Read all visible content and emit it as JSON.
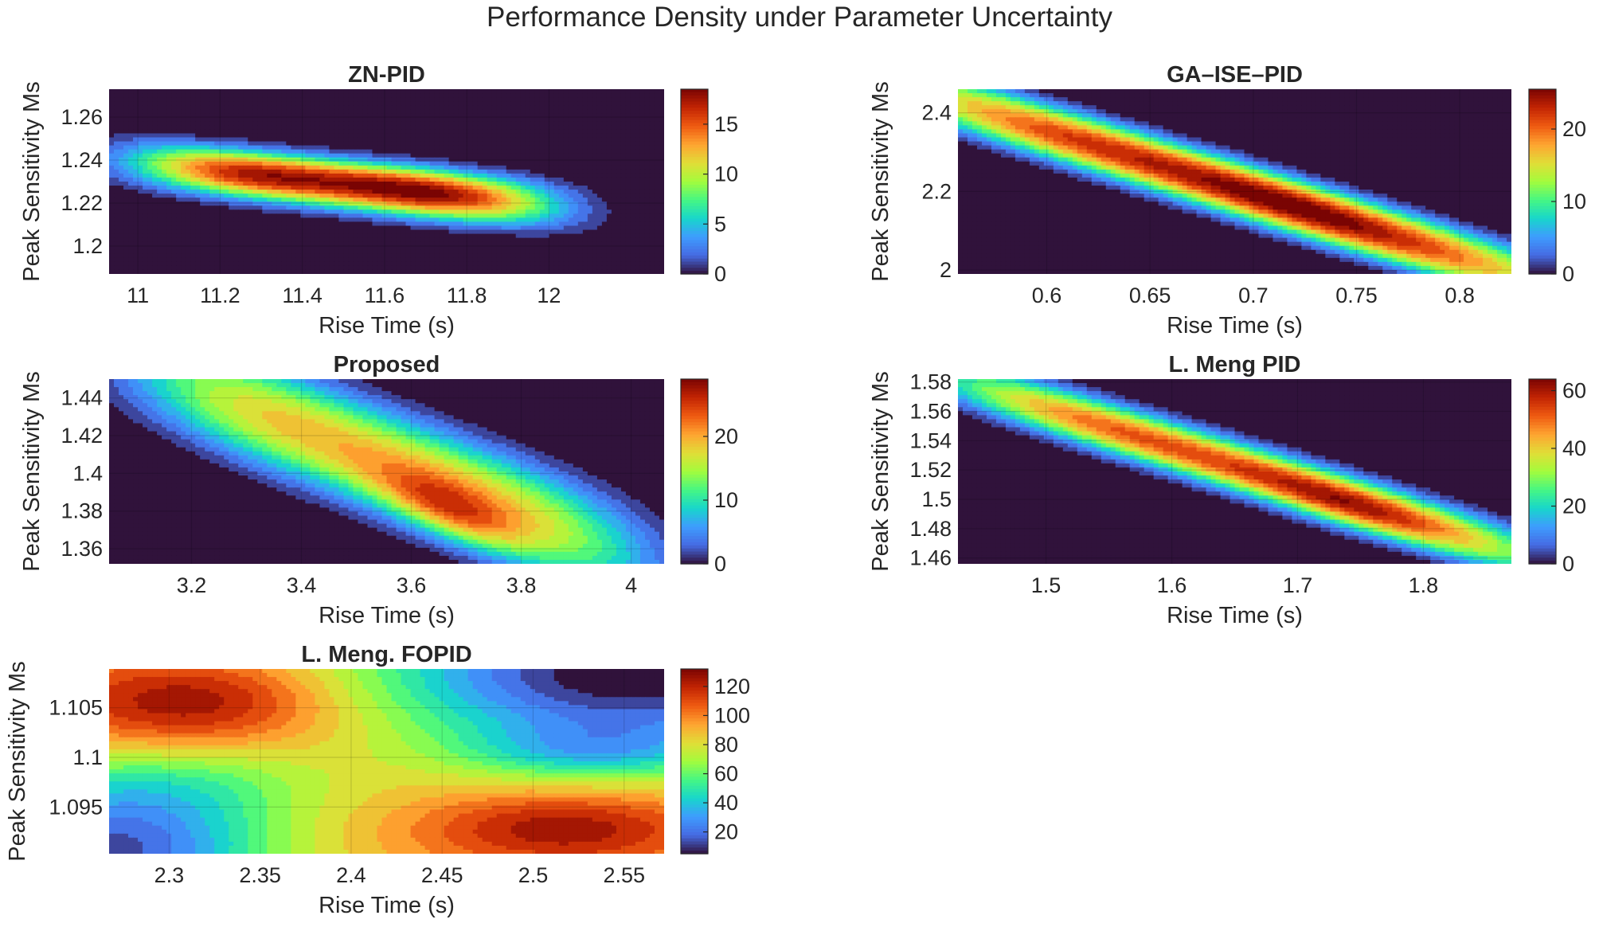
{
  "figure_title": "Performance Density under Parameter Uncertainty",
  "colors": {
    "background": "#ffffff",
    "text": "#262626",
    "low_density": "#2b1640",
    "high_density": "#7b0403",
    "grid": "#000000"
  },
  "colormap": "turbo",
  "chart_data": [
    {
      "type": "heatmap",
      "title": "ZN-PID",
      "xlabel": "Rise Time (s)",
      "ylabel": "Peak Sensitivity Ms",
      "xlim": [
        10.93,
        12.28
      ],
      "ylim": [
        1.187,
        1.273
      ],
      "xticks": [
        "11",
        "11.2",
        "11.4",
        "11.6",
        "11.8",
        "12"
      ],
      "yticks": [
        "1.2",
        "1.22",
        "1.24",
        "1.26"
      ],
      "colorbar": {
        "range": [
          0,
          18.5
        ],
        "ticks": [
          "0",
          "5",
          "10",
          "15"
        ]
      },
      "ridge": [
        [
          11.0,
          1.238
        ],
        [
          12.2,
          1.214
        ]
      ],
      "ridge_width": 0.009,
      "blobs": [
        {
          "x": 11.5,
          "y": 1.229,
          "sx": 0.42,
          "sy": 0.008,
          "w": 16.5,
          "shape": "flat"
        },
        {
          "x": 11.7,
          "y": 1.225,
          "sx": 0.16,
          "sy": 0.01,
          "w": 2.2
        },
        {
          "x": 11.28,
          "y": 1.231,
          "sx": 0.12,
          "sy": 0.007,
          "w": 1.3
        }
      ]
    },
    {
      "type": "heatmap",
      "title": "GA–ISE–PID",
      "xlabel": "Rise Time (s)",
      "ylabel": "Peak Sensitivity Ms",
      "xlim": [
        0.557,
        0.825
      ],
      "ylim": [
        1.99,
        2.46
      ],
      "xticks": [
        "0.6",
        "0.65",
        "0.7",
        "0.75",
        "0.8"
      ],
      "yticks": [
        "2",
        "2.2",
        "2.4"
      ],
      "colorbar": {
        "range": [
          0,
          25.5
        ],
        "ticks": [
          "0",
          "10",
          "20"
        ]
      },
      "ridge": [
        [
          0.57,
          2.4
        ],
        [
          0.82,
          2.0
        ]
      ],
      "ridge_width": 0.04,
      "blobs": [
        {
          "x": 0.69,
          "y": 2.21,
          "sx": 0.14,
          "sy": 0.05,
          "w": 22.5,
          "shape": "flat"
        },
        {
          "x": 0.718,
          "y": 2.164,
          "sx": 0.035,
          "sy": 0.05,
          "w": 3.5
        }
      ]
    },
    {
      "type": "heatmap",
      "title": "Proposed",
      "xlabel": "Rise Time (s)",
      "ylabel": "Peak Sensitivity Ms",
      "xlim": [
        3.05,
        4.06
      ],
      "ylim": [
        1.352,
        1.45
      ],
      "xticks": [
        "3.2",
        "3.4",
        "3.6",
        "3.8",
        "4"
      ],
      "yticks": [
        "1.36",
        "1.38",
        "1.4",
        "1.42",
        "1.44"
      ],
      "colorbar": {
        "range": [
          0,
          29
        ],
        "ticks": [
          "0",
          "10",
          "20"
        ]
      },
      "ridge": [
        [
          3.1,
          1.458
        ],
        [
          4.05,
          1.352
        ]
      ],
      "ridge_width": 0.014,
      "blobs": [
        {
          "x": 3.56,
          "y": 1.405,
          "sx": 0.38,
          "sy": 0.02,
          "w": 19.0,
          "shape": "flat"
        },
        {
          "x": 3.67,
          "y": 1.379,
          "sx": 0.09,
          "sy": 0.011,
          "w": 9.5
        }
      ]
    },
    {
      "type": "heatmap",
      "title": "L. Meng PID",
      "xlabel": "Rise Time (s)",
      "ylabel": "Peak Sensitivity Ms",
      "xlim": [
        1.43,
        1.87
      ],
      "ylim": [
        1.456,
        1.582
      ],
      "xticks": [
        "1.5",
        "1.6",
        "1.7",
        "1.8"
      ],
      "yticks": [
        "1.46",
        "1.48",
        "1.5",
        "1.52",
        "1.54",
        "1.56",
        "1.58"
      ],
      "colorbar": {
        "range": [
          0,
          64
        ],
        "ticks": [
          "0",
          "20",
          "40",
          "60"
        ]
      },
      "ridge": [
        [
          1.44,
          1.578
        ],
        [
          1.86,
          1.468
        ]
      ],
      "ridge_width": 0.011,
      "blobs": [
        {
          "x": 1.66,
          "y": 1.52,
          "sx": 0.2,
          "sy": 0.012,
          "w": 52.0,
          "shape": "flat"
        },
        {
          "x": 1.74,
          "y": 1.494,
          "sx": 0.05,
          "sy": 0.012,
          "w": 10.0
        }
      ]
    },
    {
      "type": "heatmap",
      "title": "L. Meng. FOPID",
      "xlabel": "Rise Time (s)",
      "ylabel": "Peak Sensitivity Ms",
      "xlim": [
        2.267,
        2.572
      ],
      "ylim": [
        1.0903,
        1.1089
      ],
      "xticks": [
        "2.3",
        "2.35",
        "2.4",
        "2.45",
        "2.5",
        "2.55"
      ],
      "yticks": [
        "1.095",
        "1.1",
        "1.105"
      ],
      "colorbar": {
        "range": [
          5,
          132
        ],
        "ticks": [
          "20",
          "40",
          "60",
          "80",
          "100",
          "120"
        ]
      },
      "base": 88,
      "blobs": [
        {
          "x": 2.313,
          "y": 1.1056,
          "sx": 0.055,
          "sy": 0.0032,
          "w": 38
        },
        {
          "x": 2.517,
          "y": 1.0928,
          "sx": 0.055,
          "sy": 0.0026,
          "w": 36
        },
        {
          "x": 2.555,
          "y": 1.1085,
          "sx": 0.1,
          "sy": 0.0055,
          "w": -84
        },
        {
          "x": 2.27,
          "y": 1.0906,
          "sx": 0.06,
          "sy": 0.0045,
          "w": -70
        },
        {
          "x": 2.3,
          "y": 1.0975,
          "sx": 0.06,
          "sy": 0.0028,
          "w": -22
        },
        {
          "x": 2.53,
          "y": 1.1005,
          "sx": 0.05,
          "sy": 0.002,
          "w": -28
        }
      ]
    }
  ]
}
